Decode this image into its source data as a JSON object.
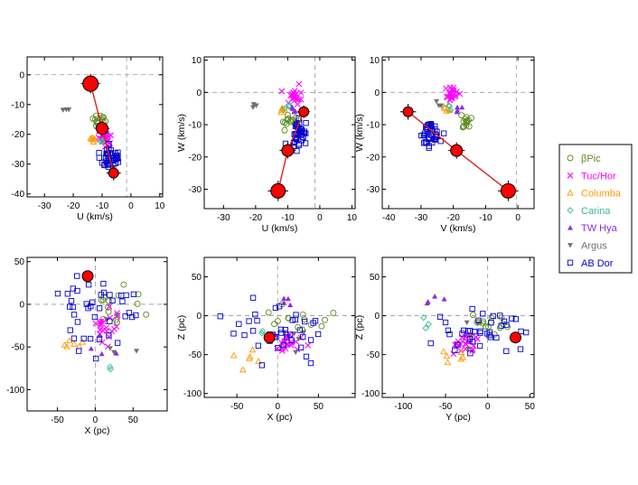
{
  "figure": {
    "legend": [
      {
        "name": "βPic",
        "marker": "circle",
        "color": "#5a8a1e"
      },
      {
        "name": "Tuc/Hor",
        "marker": "x",
        "color": "#ff00ff"
      },
      {
        "name": "Columba",
        "marker": "triangle-up",
        "color": "#ff9900"
      },
      {
        "name": "Carina",
        "marker": "diamond",
        "color": "#33bb99"
      },
      {
        "name": "TW Hya",
        "marker": "triangle-up-filled",
        "color": "#8a2be2"
      },
      {
        "name": "Argus",
        "marker": "triangle-down-filled",
        "color": "#707070"
      },
      {
        "name": "AB Dor",
        "marker": "square",
        "color": "#0000cc"
      }
    ],
    "highlight_color": "#ff0000",
    "line_color": "#dd2222"
  },
  "chart_data": [
    {
      "type": "scatter",
      "id": "uv",
      "xlabel": "U (km/s)",
      "ylabel": "",
      "xlim": [
        -36,
        11
      ],
      "ylim": [
        -41,
        6
      ],
      "xticks": [
        -30,
        -20,
        -10,
        0,
        10
      ],
      "yticks": [
        -40,
        -30,
        -20,
        -10,
        0
      ],
      "ref_lines": {
        "x": -1.5,
        "y": 0
      },
      "path": [
        [
          -14,
          -3
        ],
        [
          -10,
          -18
        ],
        [
          -6,
          -33
        ]
      ],
      "highlights": [
        {
          "x": -14,
          "y": -3,
          "size": 8.5,
          "err": 2.5
        },
        {
          "x": -10,
          "y": -18,
          "size": 6.5,
          "err": 2
        },
        {
          "x": -6,
          "y": -33,
          "size": 5.5,
          "err": 2
        }
      ],
      "groups": {
        "βPic": {
          "cx": -11,
          "cy": -15.5,
          "sx": 1.2,
          "sy": 1.2,
          "n": 14
        },
        "Tuc/Hor": {
          "cx": -9.5,
          "cy": -21,
          "sx": 1.3,
          "sy": 1.3,
          "n": 22
        },
        "Columba": {
          "cx": -13,
          "cy": -22,
          "sx": 0.8,
          "sy": 0.8,
          "n": 6
        },
        "Carina": {
          "cx": -10.5,
          "cy": -22.5,
          "sx": 0.6,
          "sy": 0.6,
          "n": 3
        },
        "TW Hya": {
          "cx": -10,
          "cy": -18,
          "sx": 0.8,
          "sy": 1.2,
          "n": 4
        },
        "Argus": {
          "cx": -22,
          "cy": -13,
          "sx": 0.6,
          "sy": 0.6,
          "n": 3
        },
        "AB Dor": {
          "cx": -7,
          "cy": -27.5,
          "sx": 1.6,
          "sy": 1.8,
          "n": 40
        }
      }
    },
    {
      "type": "scatter",
      "id": "uw",
      "xlabel": "U (km/s)",
      "ylabel": "W (km/s)",
      "xlim": [
        -36,
        11
      ],
      "ylim": [
        -36,
        11
      ],
      "xticks": [
        -30,
        -20,
        -10,
        0,
        10
      ],
      "yticks": [
        -30,
        -20,
        -10,
        0,
        10
      ],
      "ref_lines": {
        "x": -1.5,
        "y": 0
      },
      "path": [
        [
          -13,
          -30.5
        ],
        [
          -10,
          -18
        ],
        [
          -5,
          -6
        ]
      ],
      "highlights": [
        {
          "x": -13,
          "y": -30.5,
          "size": 8,
          "err": 2.5
        },
        {
          "x": -10,
          "y": -18,
          "size": 6.5,
          "err": 2
        },
        {
          "x": -5,
          "y": -6,
          "size": 5.5,
          "err": 1.5
        }
      ],
      "groups": {
        "βPic": {
          "cx": -9.5,
          "cy": -9,
          "sx": 1.3,
          "sy": 1.3,
          "n": 14
        },
        "Tuc/Hor": {
          "cx": -8,
          "cy": -1,
          "sx": 1.5,
          "sy": 1,
          "n": 22
        },
        "Columba": {
          "cx": -11,
          "cy": -5.5,
          "sx": 0.6,
          "sy": 0.8,
          "n": 6
        },
        "Carina": {
          "cx": -10,
          "cy": -4,
          "sx": 0.5,
          "sy": 0.5,
          "n": 3
        },
        "TW Hya": {
          "cx": -8,
          "cy": -5,
          "sx": 0.8,
          "sy": 0.8,
          "n": 4
        },
        "Argus": {
          "cx": -20,
          "cy": -4.5,
          "sx": 0.6,
          "sy": 0.8,
          "n": 3
        },
        "AB Dor": {
          "cx": -6.5,
          "cy": -13,
          "sx": 1.6,
          "sy": 2.5,
          "n": 40
        }
      }
    },
    {
      "type": "scatter",
      "id": "vw",
      "xlabel": "V (km/s)",
      "ylabel": "W (km/s)",
      "xlim": [
        -42,
        5
      ],
      "ylim": [
        -36,
        11
      ],
      "xticks": [
        -40,
        -30,
        -20,
        -10,
        0
      ],
      "yticks": [
        -30,
        -20,
        -10,
        0,
        10
      ],
      "ref_lines": {
        "x": -0.5,
        "y": 0
      },
      "path": [
        [
          -34,
          -6
        ],
        [
          -19,
          -18
        ],
        [
          -3,
          -30.5
        ]
      ],
      "highlights": [
        {
          "x": -34,
          "y": -6,
          "size": 5.5,
          "err": 2
        },
        {
          "x": -19,
          "y": -18,
          "size": 6.5,
          "err": 2
        },
        {
          "x": -3,
          "y": -30.5,
          "size": 8,
          "err": 2.5
        }
      ],
      "groups": {
        "βPic": {
          "cx": -16,
          "cy": -9,
          "sx": 1,
          "sy": 1.3,
          "n": 14
        },
        "Tuc/Hor": {
          "cx": -20.5,
          "cy": -1,
          "sx": 1,
          "sy": 1.2,
          "n": 22
        },
        "Columba": {
          "cx": -22,
          "cy": -5,
          "sx": 0.6,
          "sy": 0.7,
          "n": 6
        },
        "Carina": {
          "cx": -21.5,
          "cy": -4.5,
          "sx": 0.5,
          "sy": 0.5,
          "n": 3
        },
        "TW Hya": {
          "cx": -18,
          "cy": -5,
          "sx": 0.6,
          "sy": 0.8,
          "n": 4
        },
        "Argus": {
          "cx": -25,
          "cy": -4,
          "sx": 0.5,
          "sy": 0.5,
          "n": 3
        },
        "AB Dor": {
          "cx": -27,
          "cy": -13,
          "sx": 1.5,
          "sy": 2,
          "n": 40
        }
      }
    },
    {
      "type": "scatter",
      "id": "xy",
      "xlabel": "X (pc)",
      "ylabel": "",
      "xlim": [
        -90,
        95
      ],
      "ylim": [
        -125,
        55
      ],
      "xticks": [
        -50,
        0,
        50
      ],
      "yticks": [
        -100,
        -50,
        0,
        50
      ],
      "ref_lines": {
        "x": 0,
        "y": 0
      },
      "path": [],
      "highlights": [
        {
          "x": -10,
          "y": 33,
          "size": 6,
          "err": 0
        }
      ],
      "groups": {
        "βPic": {
          "cx": 20,
          "cy": 0,
          "sx": 25,
          "sy": 15,
          "n": 14
        },
        "Tuc/Hor": {
          "cx": 15,
          "cy": -25,
          "sx": 10,
          "sy": 10,
          "n": 22
        },
        "Columba": {
          "cx": -30,
          "cy": -45,
          "sx": 10,
          "sy": 8,
          "n": 6
        },
        "Carina": {
          "cx": 15,
          "cy": -75,
          "sx": 5,
          "sy": 5,
          "n": 2
        },
        "TW Hya": {
          "cx": 20,
          "cy": -45,
          "sx": 12,
          "sy": 8,
          "n": 4
        },
        "Argus": {
          "cx": 30,
          "cy": -30,
          "sx": 20,
          "sy": 15,
          "n": 5
        },
        "AB Dor": {
          "cx": 5,
          "cy": 0,
          "sx": 30,
          "sy": 25,
          "n": 40
        }
      }
    },
    {
      "type": "scatter",
      "id": "xz",
      "xlabel": "X (pc)",
      "ylabel": "Z (pc)",
      "xlim": [
        -90,
        95
      ],
      "ylim": [
        -105,
        75
      ],
      "xticks": [
        -50,
        0,
        50
      ],
      "yticks": [
        -100,
        -50,
        0,
        50
      ],
      "ref_lines": {
        "x": 0,
        "y": 0
      },
      "path": [],
      "highlights": [
        {
          "x": -10,
          "y": -28,
          "size": 6,
          "err": 0
        }
      ],
      "groups": {
        "βPic": {
          "cx": 25,
          "cy": -10,
          "sx": 22,
          "sy": 8,
          "n": 14
        },
        "Tuc/Hor": {
          "cx": 15,
          "cy": -35,
          "sx": 12,
          "sy": 6,
          "n": 22
        },
        "Columba": {
          "cx": -35,
          "cy": -50,
          "sx": 8,
          "sy": 8,
          "n": 6
        },
        "Carina": {
          "cx": -20,
          "cy": -25,
          "sx": 5,
          "sy": 5,
          "n": 2
        },
        "TW Hya": {
          "cx": 10,
          "cy": 20,
          "sx": 5,
          "sy": 4,
          "n": 4
        },
        "Argus": {
          "cx": 15,
          "cy": -25,
          "sx": 15,
          "sy": 10,
          "n": 5
        },
        "AB Dor": {
          "cx": 0,
          "cy": -18,
          "sx": 30,
          "sy": 18,
          "n": 40
        }
      }
    },
    {
      "type": "scatter",
      "id": "yz",
      "xlabel": "Y (pc)",
      "ylabel": "Z (pc)",
      "xlim": [
        -125,
        55
      ],
      "ylim": [
        -105,
        75
      ],
      "xticks": [
        -100,
        -50,
        0,
        50
      ],
      "yticks": [
        -100,
        -50,
        0,
        50
      ],
      "ref_lines": {
        "x": 0,
        "y": 0
      },
      "path": [],
      "highlights": [
        {
          "x": 33,
          "y": -28,
          "size": 6,
          "err": 0
        }
      ],
      "groups": {
        "βPic": {
          "cx": 0,
          "cy": -10,
          "sx": 15,
          "sy": 8,
          "n": 14
        },
        "Tuc/Hor": {
          "cx": -25,
          "cy": -35,
          "sx": 10,
          "sy": 6,
          "n": 22
        },
        "Columba": {
          "cx": -40,
          "cy": -50,
          "sx": 10,
          "sy": 8,
          "n": 6
        },
        "Carina": {
          "cx": -70,
          "cy": -15,
          "sx": 10,
          "sy": 8,
          "n": 3
        },
        "TW Hya": {
          "cx": -55,
          "cy": 22,
          "sx": 10,
          "sy": 3,
          "n": 4
        },
        "Argus": {
          "cx": -20,
          "cy": -25,
          "sx": 15,
          "sy": 12,
          "n": 5
        },
        "AB Dor": {
          "cx": 0,
          "cy": -20,
          "sx": 28,
          "sy": 15,
          "n": 40
        }
      }
    }
  ]
}
